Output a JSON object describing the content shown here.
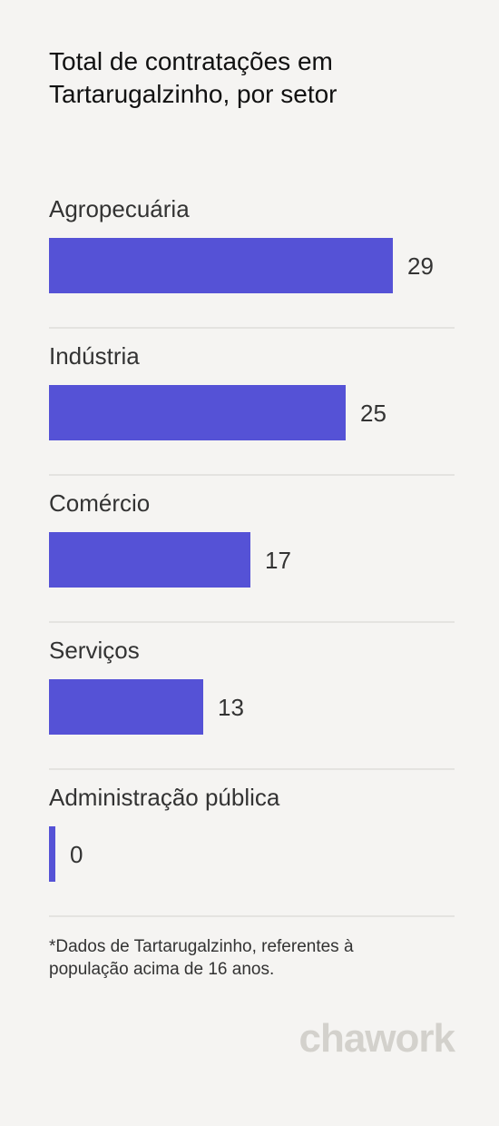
{
  "chart_data": {
    "type": "bar",
    "orientation": "horizontal",
    "title": "Total de contratações em Tartarugalzinho, por setor",
    "categories": [
      "Agropecuária",
      "Indústria",
      "Comércio",
      "Serviços",
      "Administração pública"
    ],
    "values": [
      29,
      25,
      17,
      13,
      0
    ],
    "bar_color": "#5552d6",
    "xlim": [
      0,
      29
    ],
    "grid": false,
    "legend": "none"
  },
  "footnote": "*Dados de Tartarugalzinho, referentes à população acima de 16 anos.",
  "brand": "chawork"
}
